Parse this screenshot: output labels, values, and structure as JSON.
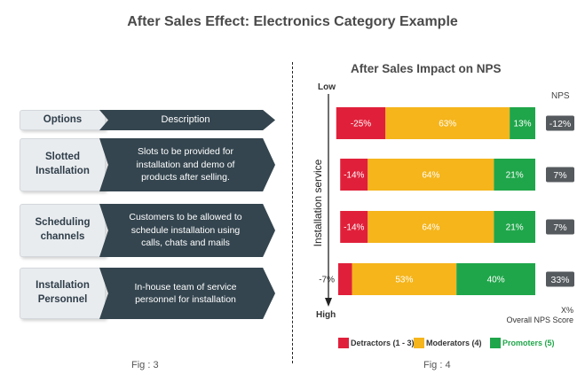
{
  "title": "After Sales Effect: Electronics Category Example",
  "left_panel": {
    "header": {
      "label": "Options",
      "description": "Description"
    },
    "rows": [
      {
        "label": "Slotted\nInstallation",
        "description": "Slots to be provided for\ninstallation and demo of\nproducts after selling."
      },
      {
        "label": "Scheduling\nchannels",
        "description": "Customers to be allowed to\nschedule installation using\ncalls, chats and mails"
      },
      {
        "label": "Installation\nPersonnel",
        "description": "In-house team of service\npersonnel for installation"
      }
    ],
    "caption": "Fig : 3"
  },
  "right_panel": {
    "caption": "Fig : 4",
    "nps_column_header": "NPS",
    "footnote_line1": "X%",
    "footnote_line2": "Overall NPS Score"
  },
  "chart_data": {
    "type": "bar",
    "orientation": "horizontal-stacked",
    "title": "After Sales Impact on NPS",
    "ylabel": "Installation service",
    "y_axis_top_label": "Low",
    "y_axis_bottom_label": "High",
    "categories": [
      "",
      "",
      "",
      ""
    ],
    "series": [
      {
        "name": "Detractors (1 - 3)",
        "color": "#e0203a",
        "values": [
          25,
          14,
          14,
          7
        ],
        "labels": [
          "-25%",
          "-14%",
          "-14%",
          "-7%"
        ]
      },
      {
        "name": "Moderators (4)",
        "color": "#f5b51b",
        "values": [
          63,
          64,
          64,
          53
        ],
        "labels": [
          "63%",
          "64%",
          "64%",
          "53%"
        ]
      },
      {
        "name": "Promoters (5)",
        "color": "#1fa64a",
        "values": [
          13,
          21,
          21,
          40
        ],
        "labels": [
          "13%",
          "21%",
          "21%",
          "40%"
        ]
      }
    ],
    "nps": [
      -12,
      7,
      7,
      33
    ],
    "nps_labels": [
      "-12%",
      "7%",
      "7%",
      "33%"
    ],
    "legend": "bottom"
  }
}
